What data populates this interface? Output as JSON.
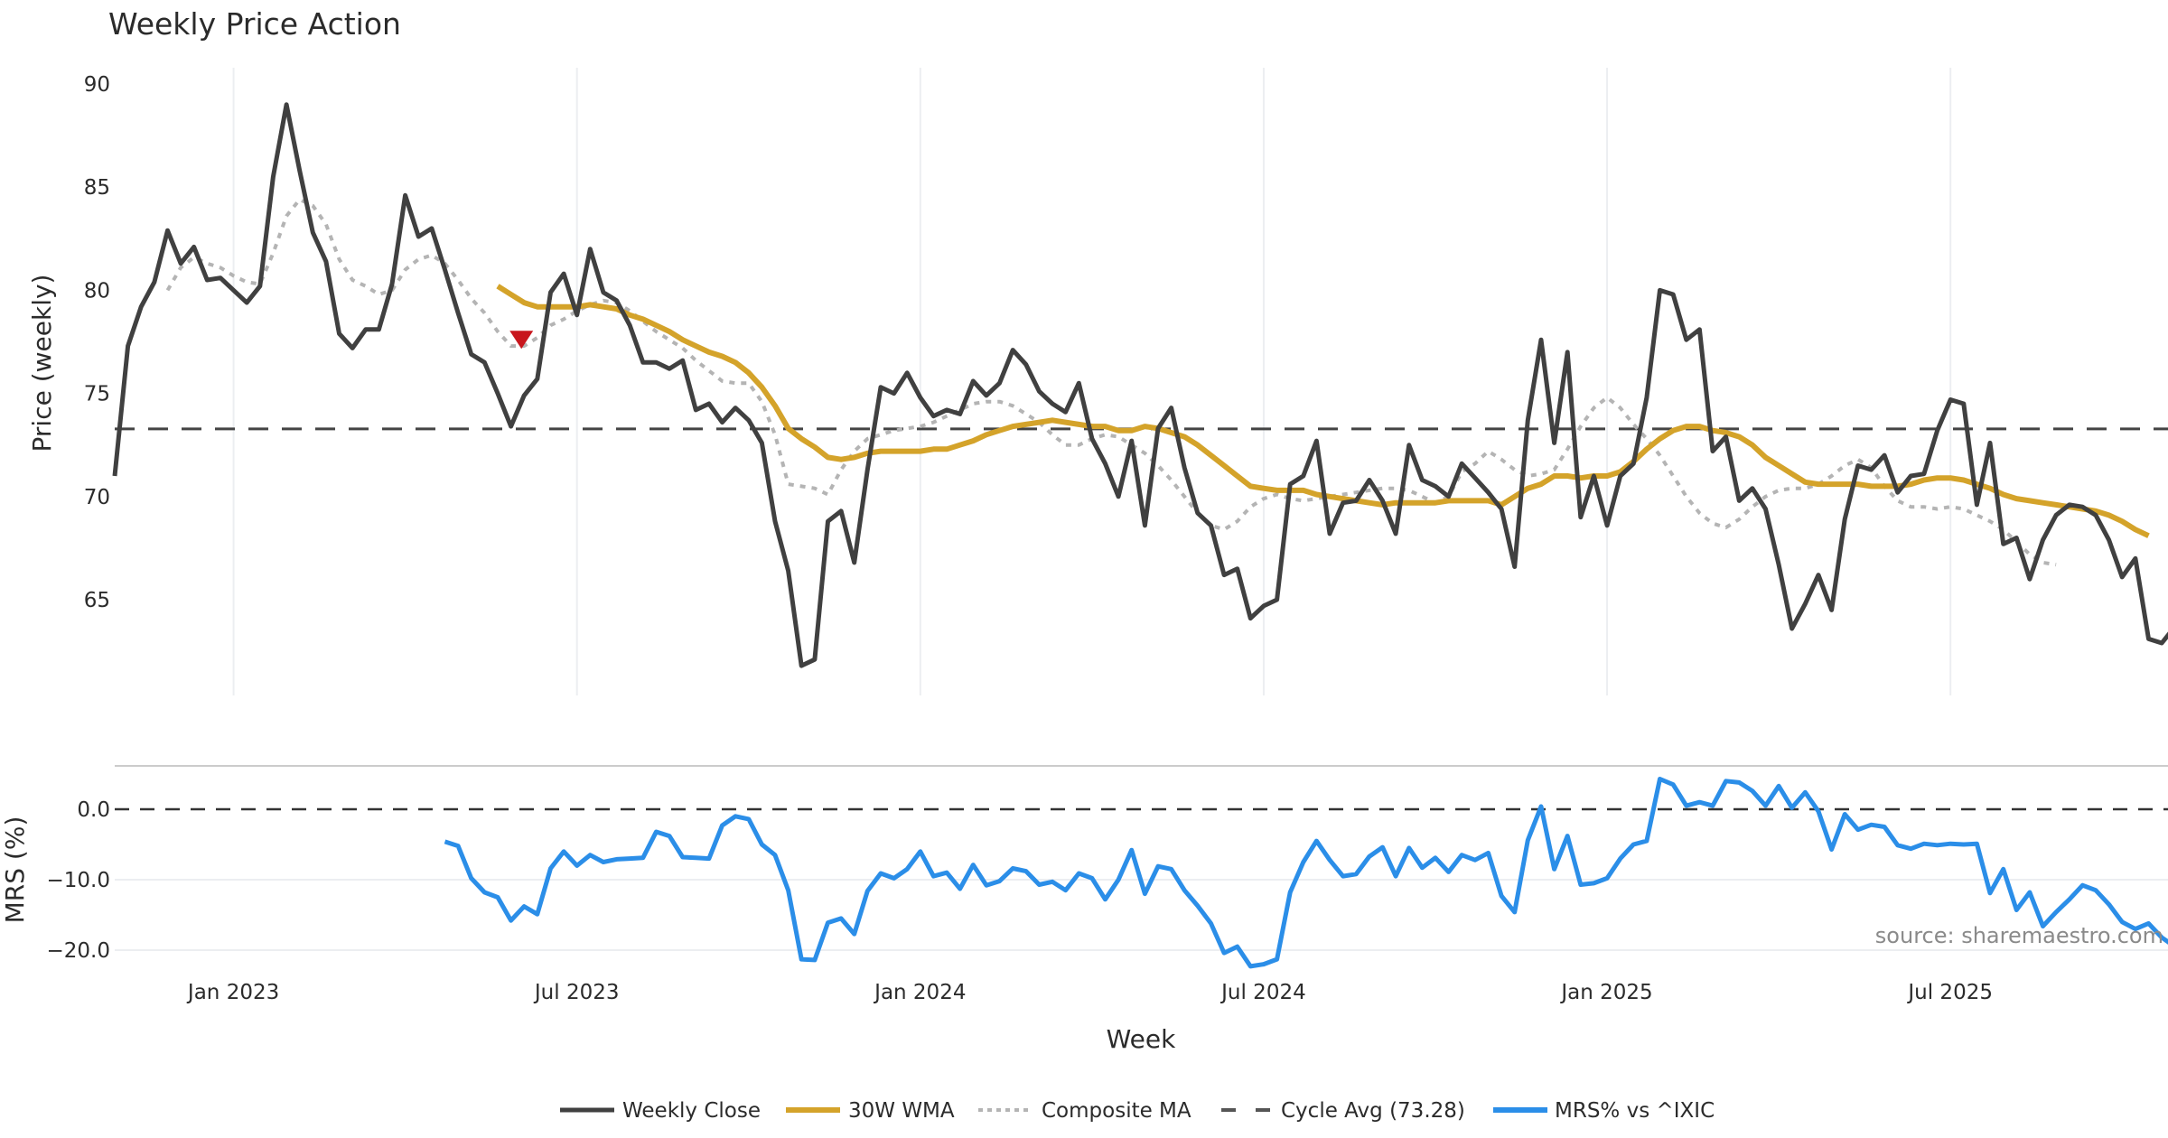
{
  "chart_data": {
    "type": "line",
    "title": "Weekly Price Action",
    "start_week": "2022-10-31",
    "x_label": "Week",
    "x_ticks": [
      "Jan 2023",
      "Jul 2023",
      "Jan 2024",
      "Jul 2024",
      "Jan 2025",
      "Jul 2025"
    ],
    "x_tick_week_index": [
      9,
      35,
      61,
      87,
      113,
      139
    ],
    "price_panel": {
      "ylabel": "Price (weekly)",
      "ylim": [
        60,
        91
      ],
      "y_ticks": [
        65,
        70,
        75,
        80,
        85,
        90
      ],
      "cycle_avg": 73.28,
      "grid": "vertical",
      "series": [
        {
          "name": "Weekly Close",
          "color": "#404040",
          "start_index": 0,
          "values": [
            71.0,
            77.3,
            79.2,
            80.4,
            82.9,
            81.3,
            82.1,
            80.5,
            80.6,
            80.0,
            79.4,
            80.2,
            85.5,
            89.0,
            85.8,
            82.8,
            81.4,
            77.9,
            77.2,
            78.1,
            78.1,
            80.3,
            84.6,
            82.6,
            83.0,
            81.0,
            78.9,
            76.9,
            76.5,
            75.0,
            73.4,
            74.9,
            75.7,
            79.9,
            80.8,
            78.8,
            82.0,
            79.9,
            79.5,
            78.3,
            76.5,
            76.5,
            76.2,
            76.6,
            74.2,
            74.5,
            73.6,
            74.3,
            73.7,
            72.6,
            68.8,
            66.4,
            61.8,
            62.1,
            68.8,
            69.3,
            66.8,
            71.3,
            75.3,
            75.0,
            76.0,
            74.8,
            73.9,
            74.2,
            74.0,
            75.6,
            74.9,
            75.5,
            77.1,
            76.4,
            75.1,
            74.5,
            74.1,
            75.5,
            72.8,
            71.6,
            70.0,
            72.7,
            68.6,
            73.3,
            74.3,
            71.4,
            69.2,
            68.6,
            66.2,
            66.5,
            64.1,
            64.7,
            65.0,
            70.6,
            71.0,
            72.7,
            68.2,
            69.7,
            69.8,
            70.8,
            69.8,
            68.2,
            72.5,
            70.8,
            70.5,
            70.0,
            71.6,
            70.9,
            70.2,
            69.4,
            66.6,
            73.7,
            77.6,
            72.6,
            77.0,
            69.0,
            71.0,
            68.6,
            71.0,
            71.6,
            74.8,
            80.0,
            79.8,
            77.6,
            78.1,
            72.2,
            72.9,
            69.8,
            70.4,
            69.4,
            66.7,
            63.6,
            64.8,
            66.2,
            64.5,
            68.9,
            71.5,
            71.3,
            72.0,
            70.2,
            71.0,
            71.1,
            73.2,
            74.7,
            74.5,
            69.6,
            72.6,
            67.7,
            68.0,
            66.0,
            67.9,
            69.1,
            69.6,
            69.5,
            69.1,
            67.9,
            66.1,
            67.0,
            63.1,
            62.9,
            63.7
          ]
        },
        {
          "name": "30W WMA",
          "color": "#D4A32A",
          "start_index": 29,
          "values": [
            80.2,
            79.8,
            79.4,
            79.2,
            79.2,
            79.2,
            79.2,
            79.3,
            79.2,
            79.1,
            78.8,
            78.6,
            78.3,
            78.0,
            77.6,
            77.3,
            77.0,
            76.8,
            76.5,
            76.0,
            75.3,
            74.4,
            73.3,
            72.8,
            72.4,
            71.9,
            71.8,
            71.9,
            72.1,
            72.2,
            72.2,
            72.2,
            72.2,
            72.3,
            72.3,
            72.5,
            72.7,
            73.0,
            73.2,
            73.4,
            73.5,
            73.6,
            73.7,
            73.6,
            73.5,
            73.4,
            73.4,
            73.2,
            73.2,
            73.4,
            73.3,
            73.1,
            72.9,
            72.5,
            72.0,
            71.5,
            71.0,
            70.5,
            70.4,
            70.3,
            70.3,
            70.3,
            70.1,
            70.0,
            69.9,
            69.8,
            69.7,
            69.6,
            69.7,
            69.7,
            69.7,
            69.7,
            69.8,
            69.8,
            69.8,
            69.8,
            69.6,
            70.0,
            70.4,
            70.6,
            71.0,
            71.0,
            70.9,
            71.0,
            71.0,
            71.2,
            71.7,
            72.3,
            72.8,
            73.2,
            73.4,
            73.4,
            73.2,
            73.1,
            72.9,
            72.5,
            71.9,
            71.5,
            71.1,
            70.7,
            70.6,
            70.6,
            70.6,
            70.6,
            70.5,
            70.5,
            70.5,
            70.6,
            70.8,
            70.9,
            70.9,
            70.8,
            70.6,
            70.4,
            70.1,
            69.9,
            69.8,
            69.7,
            69.6,
            69.5,
            69.4,
            69.3,
            69.1,
            68.8,
            68.4,
            68.1
          ]
        },
        {
          "name": "Composite MA",
          "color": "#B4B4B4",
          "start_index": 4,
          "values": [
            80.0,
            81.1,
            81.6,
            81.3,
            81.1,
            80.7,
            80.4,
            80.3,
            81.8,
            83.6,
            84.4,
            84.1,
            83.2,
            81.5,
            80.5,
            80.2,
            79.8,
            80.0,
            81.0,
            81.5,
            81.7,
            81.3,
            80.5,
            79.6,
            78.9,
            78.0,
            77.3,
            77.3,
            77.7,
            78.3,
            78.6,
            79.0,
            79.3,
            79.5,
            79.4,
            79.0,
            78.5,
            78.0,
            77.6,
            77.2,
            76.6,
            76.1,
            75.6,
            75.5,
            75.5,
            74.6,
            73.0,
            70.6,
            70.5,
            70.4,
            70.1,
            71.3,
            72.2,
            72.8,
            73.0,
            73.2,
            73.3,
            73.4,
            73.6,
            73.9,
            74.2,
            74.5,
            74.6,
            74.6,
            74.4,
            74.0,
            73.6,
            73.0,
            72.5,
            72.5,
            72.8,
            73.0,
            72.9,
            72.5,
            72.1,
            71.5,
            70.8,
            70.0,
            69.2,
            68.6,
            68.4,
            68.8,
            69.5,
            69.9,
            70.1,
            69.9,
            69.8,
            69.9,
            70.0,
            70.1,
            70.2,
            70.3,
            70.4,
            70.4,
            70.3,
            70.0,
            69.7,
            70.0,
            71.2,
            71.6,
            72.2,
            71.8,
            71.3,
            71.0,
            71.1,
            71.3,
            72.3,
            73.4,
            74.3,
            74.8,
            74.3,
            73.5,
            72.8,
            72.0,
            71.0,
            70.0,
            69.2,
            68.7,
            68.5,
            68.9,
            69.5,
            70.0,
            70.3,
            70.4,
            70.4,
            70.6,
            71.0,
            71.5,
            71.8,
            71.4,
            70.5,
            69.8,
            69.5,
            69.5,
            69.4,
            69.5,
            69.4,
            69.1,
            68.8,
            68.4,
            67.8,
            67.2,
            66.8,
            66.7
          ]
        }
      ],
      "markers": [
        {
          "name": "sell-signal",
          "shape": "triangle-down",
          "color": "#C8161D",
          "week_index": 31,
          "value": 77.6
        }
      ]
    },
    "mrs_panel": {
      "ylabel": "MRS (%)",
      "ylim": [
        -24,
        6
      ],
      "y_ticks": [
        0.0,
        -10.0,
        -20.0
      ],
      "y_tick_labels": [
        "0.0",
        "−10.0",
        "−20.0"
      ],
      "zero_line": 0.0,
      "grid": "horizontal",
      "series": [
        {
          "name": "MRS% vs ^IXIC",
          "color": "#2B8EE8",
          "start_index": 25,
          "values": [
            -4.6,
            -5.2,
            -9.8,
            -11.8,
            -12.5,
            -15.8,
            -13.8,
            -14.9,
            -8.4,
            -6.0,
            -8.0,
            -6.5,
            -7.5,
            -7.1,
            -7.0,
            -6.9,
            -3.2,
            -3.8,
            -6.8,
            -6.9,
            -7.0,
            -2.3,
            -1.0,
            -1.4,
            -5.0,
            -6.5,
            -11.5,
            -21.3,
            -21.4,
            -16.1,
            -15.5,
            -17.7,
            -11.6,
            -9.1,
            -9.8,
            -8.5,
            -6.0,
            -9.5,
            -9.0,
            -11.3,
            -7.9,
            -10.8,
            -10.2,
            -8.4,
            -8.8,
            -10.7,
            -10.3,
            -11.5,
            -9.1,
            -9.8,
            -12.8,
            -10.0,
            -5.8,
            -12.0,
            -8.1,
            -8.5,
            -11.5,
            -13.7,
            -16.2,
            -20.4,
            -19.5,
            -22.3,
            -22.0,
            -21.3,
            -11.8,
            -7.5,
            -4.5,
            -7.2,
            -9.5,
            -9.2,
            -6.7,
            -5.4,
            -9.5,
            -5.5,
            -8.3,
            -6.9,
            -8.9,
            -6.5,
            -7.2,
            -6.2,
            -12.3,
            -14.6,
            -4.4,
            0.4,
            -8.5,
            -3.8,
            -10.7,
            -10.5,
            -9.8,
            -7.0,
            -5.0,
            -4.5,
            4.3,
            3.5,
            0.5,
            1.0,
            0.5,
            4.0,
            3.8,
            2.6,
            0.5,
            3.3,
            0.2,
            2.4,
            -0.3,
            -5.7,
            -0.7,
            -2.9,
            -2.2,
            -2.5,
            -5.1,
            -5.6,
            -4.9,
            -5.1,
            -4.9,
            -5.0,
            -4.9,
            -11.9,
            -8.5,
            -14.3,
            -11.8,
            -16.6,
            -14.6,
            -12.8,
            -10.8,
            -11.5,
            -13.5,
            -16.0,
            -17.0,
            -16.2,
            -18.2,
            -19.5,
            -19.5
          ]
        }
      ]
    },
    "legend": {
      "placement": "bottom-center",
      "entries": [
        "Weekly Close",
        "30W WMA",
        "Composite MA",
        "Cycle Avg (73.28)",
        "MRS% vs ^IXIC"
      ]
    },
    "annotations": [
      "source: sharemaestro.com"
    ]
  }
}
